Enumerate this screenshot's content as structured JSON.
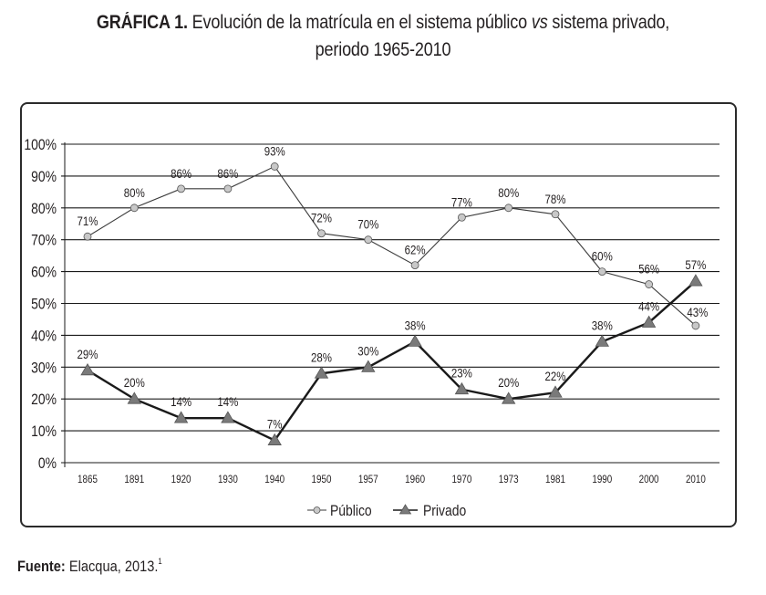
{
  "title": {
    "label": "GRÁFICA 1.",
    "text_before_italic": "Evolución de la matrícula en el sistema público ",
    "italic": "vs",
    "text_after_italic": " sistema privado,",
    "line2": "periodo 1965-2010"
  },
  "source": {
    "label": "Fuente:",
    "text": "Elacqua, 2013.",
    "footnote": "1"
  },
  "colors": {
    "gridline": "#1a1a1a",
    "publico_line": "#3a3a3a",
    "publico_marker_fill": "#c8c8c8",
    "privado_line": "#1a1a1a",
    "privado_marker_fill": "#7a7a7a",
    "frame": "#2b2b2b"
  },
  "chart_data": {
    "type": "line",
    "title": "GRÁFICA 1. Evolución de la matrícula en el sistema público vs sistema privado, periodo 1965-2010",
    "xlabel": "",
    "ylabel": "",
    "categories": [
      "1865",
      "1891",
      "1920",
      "1930",
      "1940",
      "1950",
      "1957",
      "1960",
      "1970",
      "1973",
      "1981",
      "1990",
      "2000",
      "2010"
    ],
    "yticks": [
      "0%",
      "10%",
      "20%",
      "30%",
      "40%",
      "50%",
      "60%",
      "70%",
      "80%",
      "90%",
      "100%"
    ],
    "ylim": [
      0,
      100
    ],
    "grid": true,
    "legend_position": "bottom-center",
    "series": [
      {
        "name": "Público",
        "marker": "circle",
        "values": [
          71,
          80,
          86,
          86,
          93,
          72,
          70,
          62,
          77,
          80,
          78,
          60,
          56,
          43
        ],
        "labels": [
          "71%",
          "80%",
          "86%",
          "86%",
          "93%",
          "72%",
          "70%",
          "62%",
          "77%",
          "80%",
          "78%",
          "60%",
          "56%",
          "43%"
        ]
      },
      {
        "name": "Privado",
        "marker": "triangle",
        "values": [
          29,
          20,
          14,
          14,
          7,
          28,
          30,
          38,
          23,
          20,
          22,
          38,
          44,
          57
        ],
        "labels": [
          "29%",
          "20%",
          "14%",
          "14%",
          "7%",
          "28%",
          "30%",
          "38%",
          "23%",
          "20%",
          "22%",
          "38%",
          "44%",
          "57%"
        ]
      }
    ]
  }
}
